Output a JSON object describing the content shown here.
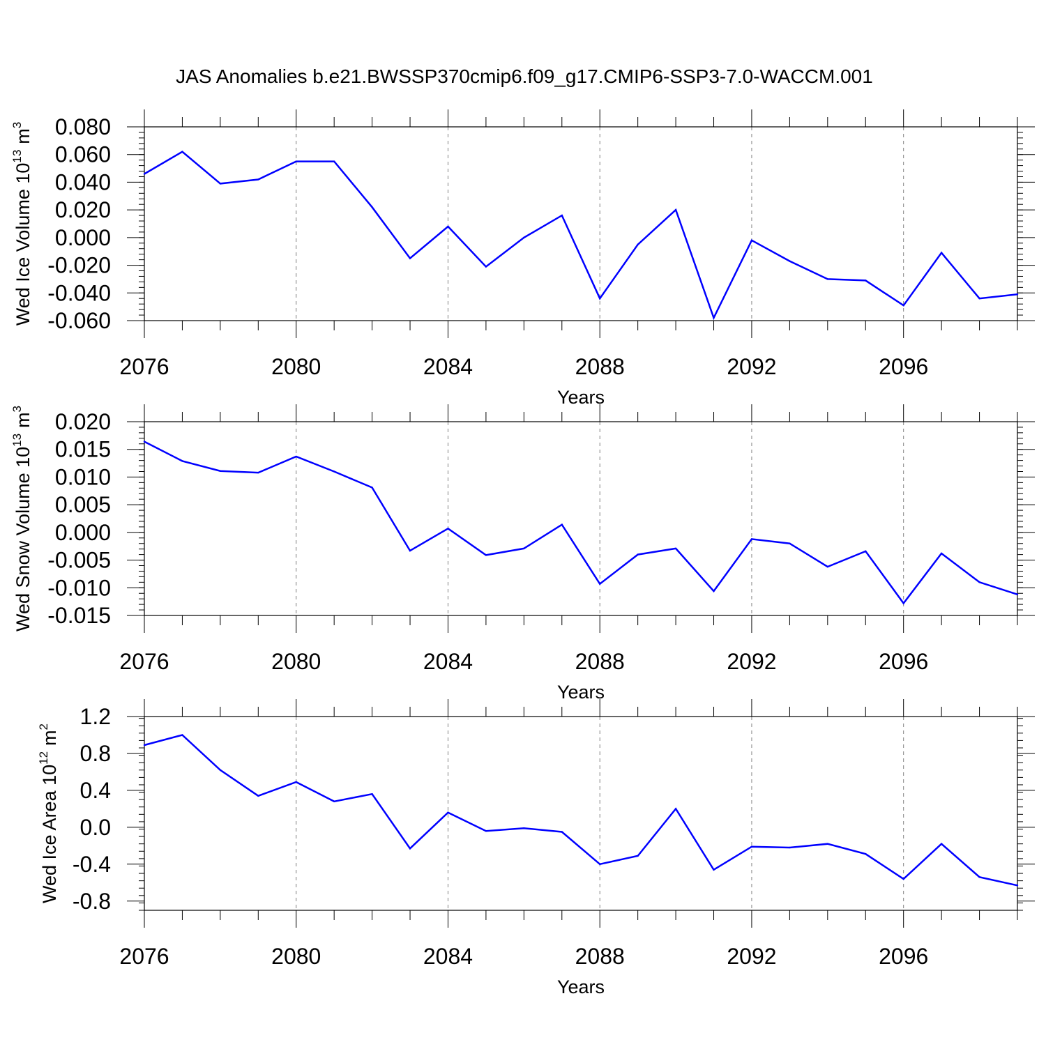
{
  "figure": {
    "title": "JAS Anomalies b.e21.BWSSP370cmip6.f09_g17.CMIP6-SSP3-7.0-WACCM.001"
  },
  "colors": {
    "series": "#0000ff",
    "axes": "#000000",
    "grid": "#808080"
  },
  "chart_data": [
    {
      "type": "line",
      "title": "",
      "xlabel": "Years",
      "ylabel": "Wed Ice Volume 10",
      "ylabel_exp": "13",
      "ylabel_unit": "m",
      "ylabel_unit_exp": "3",
      "xlim": [
        2076,
        2099
      ],
      "ylim": [
        -0.06,
        0.08
      ],
      "xticks": [
        "2076",
        "2080",
        "2084",
        "2088",
        "2092",
        "2096"
      ],
      "yticks": [
        "0.080",
        "0.060",
        "0.040",
        "0.020",
        "0.000",
        "-0.020",
        "-0.040",
        "-0.060"
      ],
      "grid": "vertical dashed at major x ticks",
      "x": [
        2076,
        2077,
        2078,
        2079,
        2080,
        2081,
        2082,
        2083,
        2084,
        2085,
        2086,
        2087,
        2088,
        2089,
        2090,
        2091,
        2092,
        2093,
        2094,
        2095,
        2096,
        2097,
        2098,
        2099
      ],
      "values": [
        0.046,
        0.062,
        0.039,
        0.042,
        0.055,
        0.055,
        0.022,
        -0.015,
        0.008,
        -0.021,
        0.0,
        0.016,
        -0.044,
        -0.005,
        0.02,
        -0.058,
        -0.002,
        -0.017,
        -0.03,
        -0.031,
        -0.049,
        -0.011,
        -0.044,
        -0.041
      ]
    },
    {
      "type": "line",
      "title": "",
      "xlabel": "Years",
      "ylabel": "Wed Snow Volume 10",
      "ylabel_exp": "13",
      "ylabel_unit": "m",
      "ylabel_unit_exp": "3",
      "xlim": [
        2076,
        2099
      ],
      "ylim": [
        -0.015,
        0.02
      ],
      "xticks": [
        "2076",
        "2080",
        "2084",
        "2088",
        "2092",
        "2096"
      ],
      "yticks": [
        "0.020",
        "0.015",
        "0.010",
        "0.005",
        "0.000",
        "-0.005",
        "-0.010",
        "-0.015"
      ],
      "grid": "vertical dashed at major x ticks",
      "x": [
        2076,
        2077,
        2078,
        2079,
        2080,
        2081,
        2082,
        2083,
        2084,
        2085,
        2086,
        2087,
        2088,
        2089,
        2090,
        2091,
        2092,
        2093,
        2094,
        2095,
        2096,
        2097,
        2098,
        2099
      ],
      "values": [
        0.0164,
        0.0129,
        0.0111,
        0.0108,
        0.0137,
        0.011,
        0.0081,
        -0.0033,
        0.0007,
        -0.0041,
        -0.0029,
        0.0014,
        -0.0093,
        -0.004,
        -0.0029,
        -0.0106,
        -0.0012,
        -0.002,
        -0.0062,
        -0.0034,
        -0.0128,
        -0.0038,
        -0.009,
        -0.0112
      ]
    },
    {
      "type": "line",
      "title": "",
      "xlabel": "Years",
      "ylabel": "Wed Ice Area 10",
      "ylabel_exp": "12",
      "ylabel_unit": "m",
      "ylabel_unit_exp": "2",
      "xlim": [
        2076,
        2099
      ],
      "ylim": [
        -0.9,
        1.2
      ],
      "xticks": [
        "2076",
        "2080",
        "2084",
        "2088",
        "2092",
        "2096"
      ],
      "yticks": [
        "1.2",
        "0.8",
        "0.4",
        "0.0",
        "-0.4",
        "-0.8"
      ],
      "grid": "vertical dashed at major x ticks",
      "x": [
        2076,
        2077,
        2078,
        2079,
        2080,
        2081,
        2082,
        2083,
        2084,
        2085,
        2086,
        2087,
        2088,
        2089,
        2090,
        2091,
        2092,
        2093,
        2094,
        2095,
        2096,
        2097,
        2098,
        2099
      ],
      "values": [
        0.89,
        1.0,
        0.62,
        0.34,
        0.49,
        0.28,
        0.36,
        -0.23,
        0.16,
        -0.04,
        -0.01,
        -0.05,
        -0.4,
        -0.31,
        0.2,
        -0.46,
        -0.21,
        -0.22,
        -0.18,
        -0.29,
        -0.56,
        -0.18,
        -0.54,
        -0.63
      ]
    }
  ]
}
